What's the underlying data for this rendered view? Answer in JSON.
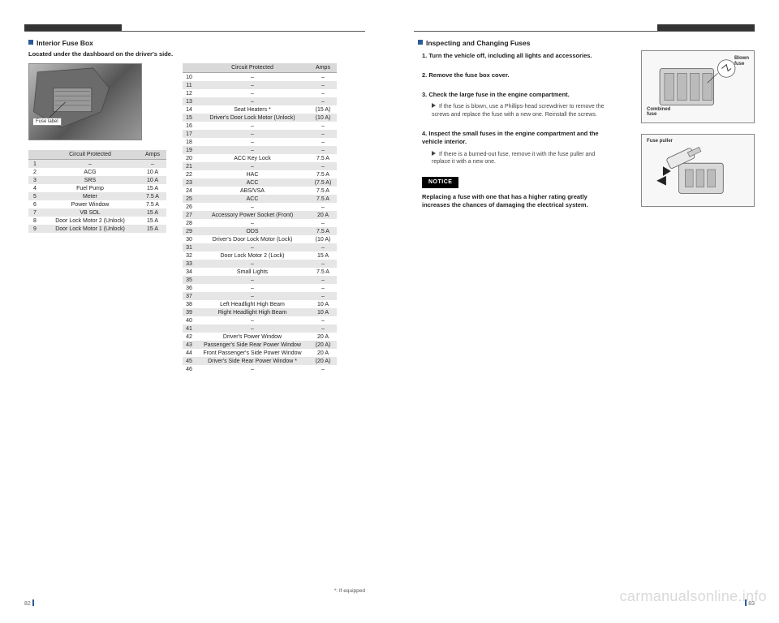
{
  "left": {
    "section_title": "Interior Fuse Box",
    "intro": "Located under the dashboard on the driver's side.",
    "photo_label": "Fuse label",
    "table_a": {
      "headers": [
        "",
        "Circuit Protected",
        "Amps"
      ],
      "rows": [
        {
          "n": "1",
          "name": "–",
          "amp": "–"
        },
        {
          "n": "2",
          "name": "ACG",
          "amp": "10 A"
        },
        {
          "n": "3",
          "name": "SRS",
          "amp": "10 A"
        },
        {
          "n": "4",
          "name": "Fuel Pump",
          "amp": "15 A"
        },
        {
          "n": "5",
          "name": "Meter",
          "amp": "7.5 A"
        },
        {
          "n": "6",
          "name": "Power Window",
          "amp": "7.5 A"
        },
        {
          "n": "7",
          "name": "VB SOL",
          "amp": "15 A"
        },
        {
          "n": "8",
          "name": "Door Lock Motor 2 (Unlock)",
          "amp": "15 A"
        },
        {
          "n": "9",
          "name": "Door Lock Motor 1 (Unlock)",
          "amp": "15 A"
        }
      ]
    },
    "table_b": {
      "headers": [
        "",
        "Circuit Protected",
        "Amps"
      ],
      "rows": [
        {
          "n": "10",
          "name": "–",
          "amp": "–"
        },
        {
          "n": "11",
          "name": "–",
          "amp": "–"
        },
        {
          "n": "12",
          "name": "–",
          "amp": "–"
        },
        {
          "n": "13",
          "name": "–",
          "amp": "–"
        },
        {
          "n": "14",
          "name": "Seat Heaters *",
          "amp": "(15 A)"
        },
        {
          "n": "15",
          "name": "Driver's Door Lock Motor (Unlock)",
          "amp": "(10 A)"
        },
        {
          "n": "16",
          "name": "–",
          "amp": "–"
        },
        {
          "n": "17",
          "name": "–",
          "amp": "–"
        },
        {
          "n": "18",
          "name": "–",
          "amp": "–"
        },
        {
          "n": "19",
          "name": "–",
          "amp": "–"
        },
        {
          "n": "20",
          "name": "ACC Key Lock",
          "amp": "7.5 A"
        },
        {
          "n": "21",
          "name": "–",
          "amp": "–"
        },
        {
          "n": "22",
          "name": "HAC",
          "amp": "7.5 A"
        },
        {
          "n": "23",
          "name": "ACC",
          "amp": "(7.5 A)"
        },
        {
          "n": "24",
          "name": "ABS/VSA",
          "amp": "7.5 A"
        },
        {
          "n": "25",
          "name": "ACC",
          "amp": "7.5 A"
        },
        {
          "n": "26",
          "name": "–",
          "amp": "–"
        },
        {
          "n": "27",
          "name": "Accessory Power Socket (Front)",
          "amp": "20 A"
        },
        {
          "n": "28",
          "name": "–",
          "amp": "–"
        },
        {
          "n": "29",
          "name": "ODS",
          "amp": "7.5 A"
        },
        {
          "n": "30",
          "name": "Driver's Door Lock Motor (Lock)",
          "amp": "(10 A)"
        },
        {
          "n": "31",
          "name": "–",
          "amp": "–"
        },
        {
          "n": "32",
          "name": "Door Lock Motor 2 (Lock)",
          "amp": "15 A"
        },
        {
          "n": "33",
          "name": "–",
          "amp": "–"
        },
        {
          "n": "34",
          "name": "Small Lights",
          "amp": "7.5 A"
        },
        {
          "n": "35",
          "name": "–",
          "amp": "–"
        },
        {
          "n": "36",
          "name": "–",
          "amp": "–"
        },
        {
          "n": "37",
          "name": "–",
          "amp": "–"
        },
        {
          "n": "38",
          "name": "Left Headlight High Beam",
          "amp": "10 A"
        },
        {
          "n": "39",
          "name": "Right Headlight High Beam",
          "amp": "10 A"
        },
        {
          "n": "40",
          "name": "–",
          "amp": "–"
        },
        {
          "n": "41",
          "name": "–",
          "amp": "–"
        },
        {
          "n": "42",
          "name": "Driver's Power Window",
          "amp": "20 A"
        },
        {
          "n": "43",
          "name": "Passenger's Side Rear Power Window",
          "amp": "(20 A)"
        },
        {
          "n": "44",
          "name": "Front Passenger's Side Power Window",
          "amp": "20 A"
        },
        {
          "n": "45",
          "name": "Driver's Side Rear Power Window *",
          "amp": "(20 A)"
        },
        {
          "n": "46",
          "name": "–",
          "amp": "–"
        }
      ]
    },
    "footnote": "*: If equipped",
    "page_number": "82"
  },
  "right": {
    "section_title": "Inspecting and Changing Fuses",
    "steps": [
      {
        "n": "1.",
        "text": "Turn the vehicle off, including all lights and accessories.",
        "sub": ""
      },
      {
        "n": "2.",
        "text": "Remove the fuse box cover.",
        "sub": ""
      },
      {
        "n": "3.",
        "text": "Check the large fuse in the engine compartment.",
        "sub": "If the fuse is blown, use a Phillips-head screwdriver to remove the screws and replace the fuse with a new one. Reinstall the screws."
      },
      {
        "n": "4.",
        "text": "Inspect the small fuses in the engine compartment and the vehicle interior.",
        "sub": "If there is a burned-out fuse, remove it with the fuse puller and replace it with a new one."
      }
    ],
    "notice_label": "NOTICE",
    "notice_text": "Replacing a fuse with one that has a higher rating greatly increases the chances of damaging the electrical system.",
    "diag1_labels": {
      "blown": "Blown\nfuse",
      "combined": "Combined\nfuse"
    },
    "diag2_label": "Fuse puller",
    "page_number": "83"
  },
  "watermark": "carmanualsonline.info",
  "colors": {
    "accent": "#2a5a9a",
    "row_even": "#e6e6e6",
    "row_odd": "#ffffff",
    "header_bg": "#d9d9d9",
    "photo_grad_a": "#bbbbbb",
    "photo_grad_b": "#555555"
  }
}
